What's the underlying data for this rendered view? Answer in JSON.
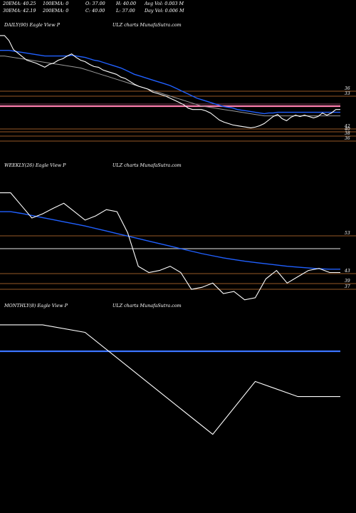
{
  "header": {
    "row1": [
      "20EMA: 40.25",
      "100EMA: 0",
      "O: 37.00",
      "H: 40.00",
      "Avg Vol: 0.003  M"
    ],
    "row2": [
      "30EMA: 42.19",
      "200EMA: 0",
      "C: 40.00",
      "L: 37.00",
      "Day Vol: 0.006  M"
    ]
  },
  "panels": [
    {
      "label_left": "DAILY(90) Eagle   View  P",
      "label_right": "ULZ charts MunafaSutra.com"
    },
    {
      "label_left": "WEEKLY(26) Eagle   View  P",
      "label_right": "ULZ charts MunafaSutra.com"
    },
    {
      "label_left": "MONTHLY(8) Eagle   View  P",
      "label_right": "ULZ charts MunafaSutra.com"
    }
  ],
  "colors": {
    "price": "#ffffff",
    "ema_blue": "#2060ff",
    "level_line": "#c87533",
    "pink": "#ff7fb0",
    "grey": "#9a9a9a"
  },
  "chart_data": [
    {
      "type": "line",
      "name": "daily",
      "ylim": [
        34.5,
        51
      ],
      "price": [
        50.5,
        50.5,
        49.8,
        48.5,
        48.0,
        47.5,
        47.0,
        46.8,
        46.6,
        46.3,
        46.0,
        46.4,
        46.6,
        47.0,
        47.2,
        47.6,
        47.9,
        47.4,
        47.0,
        46.8,
        46.4,
        46.1,
        46.0,
        45.6,
        45.4,
        45.2,
        45.0,
        44.6,
        44.4,
        44.0,
        43.6,
        43.3,
        43.1,
        42.9,
        42.5,
        42.3,
        42.1,
        41.9,
        41.6,
        41.3,
        41.0,
        40.7,
        40.2,
        40.0,
        40.0,
        40.0,
        39.8,
        39.5,
        39.0,
        38.5,
        38.2,
        38.0,
        37.8,
        37.7,
        37.6,
        37.5,
        37.4,
        37.5,
        37.7,
        38.0,
        38.5,
        39.0,
        39.3,
        38.7,
        38.4,
        38.9,
        39.2,
        39.0,
        39.2,
        39.0,
        38.8,
        39.0,
        39.5,
        39.2,
        39.5,
        40.0,
        40.0
      ],
      "ema_blue": [
        48.4,
        48.4,
        48.4,
        48.3,
        48.2,
        48.1,
        48.0,
        47.9,
        47.8,
        47.7,
        47.6,
        47.6,
        47.6,
        47.6,
        47.6,
        47.6,
        47.7,
        47.6,
        47.5,
        47.4,
        47.2,
        47.0,
        46.9,
        46.7,
        46.5,
        46.3,
        46.1,
        45.9,
        45.6,
        45.3,
        45.0,
        44.8,
        44.6,
        44.4,
        44.2,
        44.0,
        43.8,
        43.6,
        43.4,
        43.1,
        42.8,
        42.5,
        42.2,
        41.9,
        41.6,
        41.4,
        41.2,
        41.0,
        40.8,
        40.6,
        40.4,
        40.3,
        40.2,
        40.0,
        39.9,
        39.8,
        39.7,
        39.6,
        39.5,
        39.4,
        39.5,
        39.5,
        39.6,
        39.6,
        39.6,
        39.6,
        39.6,
        39.6,
        39.6,
        39.6,
        39.6,
        39.6,
        39.6,
        39.6,
        39.6,
        39.6,
        39.6
      ],
      "ema_grey": [
        47.6,
        47.6,
        47.5,
        47.4,
        47.3,
        47.2,
        47.1,
        47.0,
        46.9,
        46.8,
        46.7,
        46.6,
        46.5,
        46.4,
        46.3,
        46.2,
        46.1,
        46.0,
        45.9,
        45.7,
        45.5,
        45.3,
        45.1,
        44.9,
        44.7,
        44.5,
        44.3,
        44.1,
        43.9,
        43.7,
        43.5,
        43.3,
        43.1,
        42.9,
        42.7,
        42.5,
        42.3,
        42.1,
        41.9,
        41.7,
        41.5,
        41.3,
        41.1,
        40.9,
        40.7,
        40.5,
        40.4,
        40.3,
        40.2,
        40.1,
        40.0,
        39.9,
        39.8,
        39.7,
        39.6,
        39.5,
        39.4,
        39.3,
        39.2,
        39.1,
        39.1,
        39.1,
        39.1,
        39.1,
        39.1,
        39.1,
        39.1,
        39.1,
        39.1,
        39.1,
        39.1,
        39.1,
        39.1,
        39.1,
        39.1,
        39.1,
        39.1
      ],
      "level_lines": [
        {
          "value": 36,
          "label": "36"
        },
        {
          "value": 33,
          "label": "33"
        },
        {
          "value": 42,
          "label": "42"
        },
        {
          "value": 40,
          "label": "40"
        },
        {
          "value": 38,
          "label": "38"
        },
        {
          "value": 36,
          "label": "36"
        }
      ]
    },
    {
      "type": "line",
      "name": "weekly",
      "ylim": [
        34.5,
        62
      ],
      "price": [
        58.5,
        58.5,
        55.5,
        52.5,
        53.5,
        54.8,
        56.0,
        54.0,
        52.0,
        53.0,
        54.5,
        54.0,
        49.0,
        41.0,
        39.5,
        40.0,
        41.0,
        39.5,
        35.5,
        36.0,
        37.0,
        34.5,
        35.0,
        33.0,
        33.5,
        38.0,
        40.0,
        37.0,
        38.5,
        40.0,
        40.5,
        39.5,
        39.5
      ],
      "ema_blue": [
        54.0,
        54.0,
        53.6,
        53.1,
        52.6,
        52.1,
        51.6,
        51.1,
        50.6,
        50.0,
        49.4,
        48.8,
        48.2,
        47.6,
        47.0,
        46.4,
        45.8,
        45.2,
        44.6,
        44.0,
        43.5,
        43.0,
        42.6,
        42.2,
        41.9,
        41.6,
        41.3,
        41.0,
        40.8,
        40.6,
        40.4,
        40.3,
        40.3
      ],
      "level_lines": [
        {
          "value": 53,
          "label": "53"
        },
        {
          "value": 43,
          "label": "43"
        },
        {
          "value": 39,
          "label": "39"
        },
        {
          "value": 37,
          "label": "37"
        }
      ]
    },
    {
      "type": "line",
      "name": "monthly",
      "ylim": [
        30,
        80
      ],
      "price": [
        77,
        77,
        75,
        66,
        57,
        48,
        62,
        58,
        58
      ],
      "ema_blue": [
        70,
        70,
        70,
        70,
        70,
        70,
        70,
        70,
        70
      ],
      "level_lines": []
    }
  ]
}
